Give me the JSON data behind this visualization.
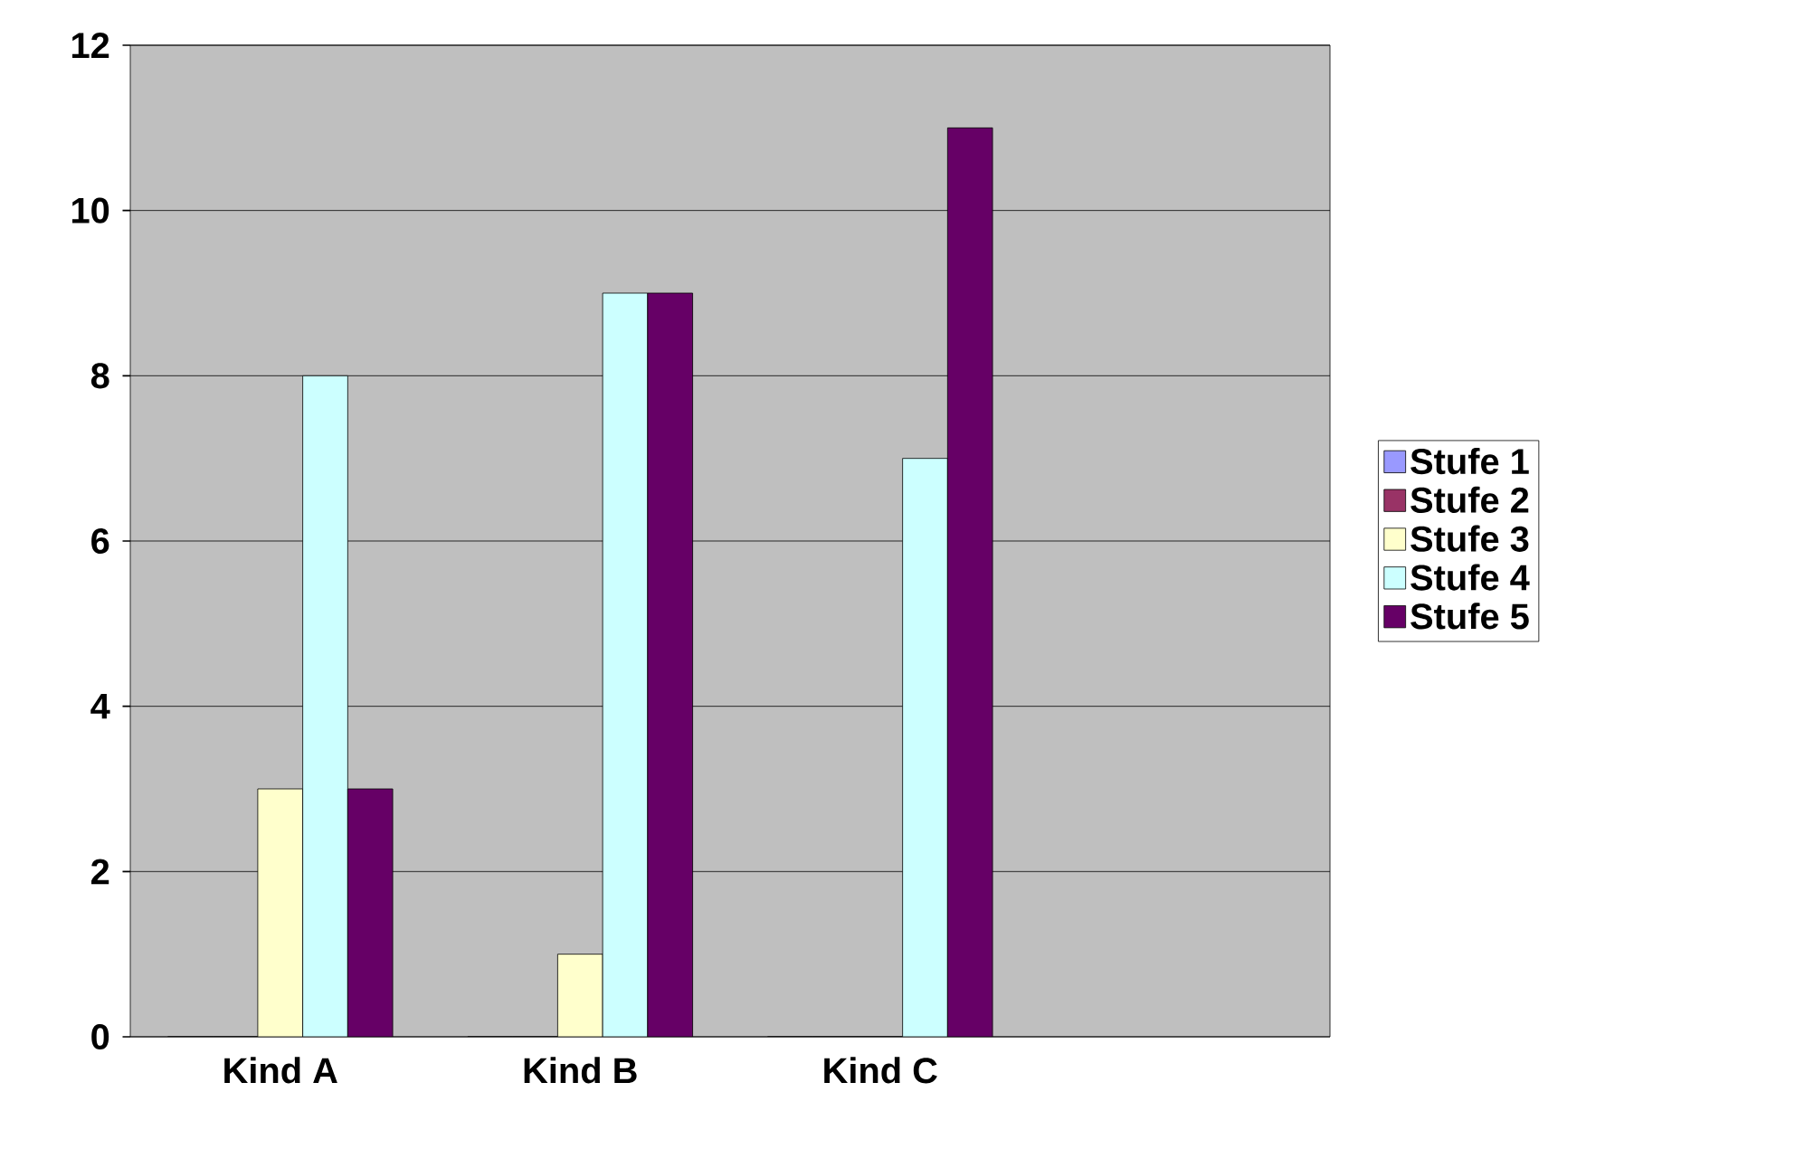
{
  "chart_data": {
    "type": "bar",
    "categories": [
      "Kind A",
      "Kind B",
      "Kind C",
      null
    ],
    "series": [
      {
        "name": "Stufe 1",
        "color": "#9999ff",
        "values": [
          0,
          0,
          0,
          null
        ]
      },
      {
        "name": "Stufe 2",
        "color": "#993366",
        "values": [
          0,
          0,
          0,
          null
        ]
      },
      {
        "name": "Stufe 3",
        "color": "#ffffcc",
        "values": [
          3,
          1,
          0,
          null
        ]
      },
      {
        "name": "Stufe 4",
        "color": "#ccffff",
        "values": [
          8,
          9,
          7,
          null
        ]
      },
      {
        "name": "Stufe 5",
        "color": "#660066",
        "values": [
          3,
          9,
          11,
          null
        ]
      }
    ],
    "ylim": [
      0,
      12
    ],
    "yticks": [
      0,
      2,
      4,
      6,
      8,
      10,
      12
    ],
    "grid": "y",
    "legend": "right"
  }
}
